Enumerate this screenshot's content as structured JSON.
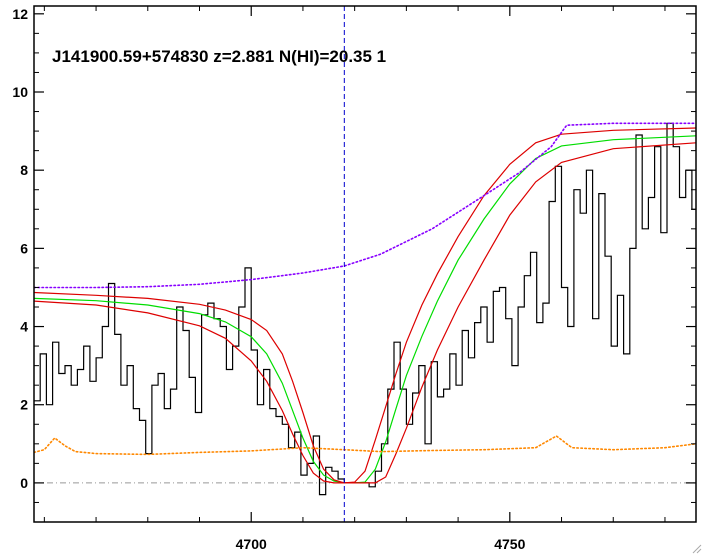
{
  "chart_data": {
    "type": "line",
    "title": "J141900.59+574830 z=2.881 N(HI)=20.35 1",
    "xlabel": "",
    "ylabel": "",
    "xlim": [
      4658,
      4786
    ],
    "ylim": [
      -1.0,
      12.2
    ],
    "x_ticks": [
      4700,
      4750
    ],
    "y_ticks": [
      0,
      2,
      4,
      6,
      8,
      10,
      12
    ],
    "grid": false,
    "line_center_x": 4718,
    "colors": {
      "flux": "#000000",
      "model": "#00dd00",
      "model_bounds": "#dd0000",
      "continuum": "#8800ff",
      "error": "#ff8800",
      "center_marker": "#0000cc",
      "zero_line": "#999999"
    },
    "series": [
      {
        "style": "step",
        "color": "#000000",
        "x": [
          4658.0,
          4659.2,
          4660.4,
          4661.6,
          4662.8,
          4664.0,
          4665.2,
          4666.4,
          4667.6,
          4668.8,
          4670.0,
          4671.2,
          4672.4,
          4673.6,
          4674.8,
          4676.0,
          4677.2,
          4678.4,
          4679.6,
          4680.8,
          4682.0,
          4683.2,
          4684.4,
          4685.6,
          4686.8,
          4688.0,
          4689.2,
          4690.4,
          4691.6,
          4692.8,
          4694.0,
          4695.2,
          4696.4,
          4697.6,
          4698.8,
          4700.0,
          4701.2,
          4702.4,
          4703.6,
          4704.8,
          4706.0,
          4707.2,
          4708.4,
          4709.6,
          4710.8,
          4712.0,
          4713.2,
          4714.4,
          4715.6,
          4716.8,
          4718.0,
          4719.2,
          4720.4,
          4721.6,
          4722.8,
          4724.0,
          4725.2,
          4726.4,
          4727.6,
          4728.8,
          4730.0,
          4731.2,
          4732.4,
          4733.6,
          4734.8,
          4736.0,
          4737.2,
          4738.4,
          4739.6,
          4740.8,
          4742.0,
          4743.2,
          4744.4,
          4745.6,
          4746.8,
          4748.0,
          4749.2,
          4750.4,
          4751.6,
          4752.8,
          4754.0,
          4755.2,
          4756.4,
          4757.6,
          4758.8,
          4760.0,
          4761.2,
          4762.4,
          4763.6,
          4764.8,
          4766.0,
          4767.2,
          4768.4,
          4769.6,
          4770.8,
          4772.0,
          4773.2,
          4774.4,
          4775.6,
          4776.8,
          4778.0,
          4779.2,
          4780.4,
          4781.6,
          4782.8,
          4784.0,
          4785.2
        ],
        "values": [
          2.1,
          3.3,
          2.0,
          3.6,
          2.8,
          3.0,
          2.5,
          2.9,
          3.5,
          2.6,
          3.2,
          4.0,
          5.1,
          3.8,
          2.5,
          3.0,
          1.9,
          1.6,
          0.75,
          2.5,
          2.8,
          1.9,
          2.4,
          4.5,
          3.9,
          2.7,
          1.8,
          4.3,
          4.6,
          4.2,
          4.0,
          2.9,
          3.5,
          4.5,
          5.5,
          3.4,
          2.0,
          2.9,
          1.9,
          1.7,
          1.5,
          0.9,
          1.3,
          0.2,
          0.5,
          1.2,
          -0.3,
          0.4,
          0.3,
          0.1,
          0.0,
          0.0,
          0.0,
          0.0,
          -0.1,
          0.3,
          1.0,
          2.4,
          3.6,
          2.4,
          1.5,
          2.3,
          3.0,
          1.0,
          3.1,
          2.2,
          2.4,
          3.3,
          2.5,
          3.9,
          3.2,
          4.1,
          4.5,
          3.6,
          4.9,
          5.0,
          4.2,
          3.0,
          4.5,
          5.3,
          5.9,
          4.1,
          4.6,
          7.2,
          8.1,
          5.0,
          4.0,
          7.5,
          6.9,
          8.0,
          4.2,
          7.4,
          5.8,
          3.5,
          4.8,
          3.3,
          6.0,
          8.9,
          6.5,
          7.3,
          8.6,
          6.4,
          9.2,
          8.6,
          7.3,
          8.0,
          7.0
        ]
      },
      {
        "style": "line",
        "color": "#00dd00",
        "x": [
          4658,
          4670,
          4680,
          4690,
          4695,
          4700,
          4703,
          4706,
          4708,
          4710,
          4712,
          4714,
          4716,
          4718,
          4720,
          4722,
          4724,
          4726,
          4728,
          4730,
          4733,
          4736,
          4740,
          4745,
          4750,
          4755,
          4760,
          4770,
          4786
        ],
        "values": [
          4.72,
          4.66,
          4.55,
          4.33,
          4.12,
          3.74,
          3.3,
          2.55,
          1.85,
          1.15,
          0.55,
          0.2,
          0.05,
          0.0,
          0.0,
          0.02,
          0.35,
          1.05,
          1.9,
          2.75,
          3.75,
          4.65,
          5.7,
          6.75,
          7.65,
          8.3,
          8.62,
          8.78,
          8.88
        ]
      },
      {
        "style": "line",
        "color": "#dd0000",
        "x": [
          4658,
          4670,
          4680,
          4690,
          4695,
          4700,
          4703,
          4706,
          4708,
          4710,
          4712,
          4714,
          4716,
          4718,
          4720,
          4722,
          4724,
          4726,
          4728,
          4730,
          4733,
          4736,
          4740,
          4745,
          4750,
          4755,
          4760,
          4770,
          4786
        ],
        "values": [
          4.87,
          4.8,
          4.72,
          4.57,
          4.42,
          4.18,
          3.9,
          3.3,
          2.6,
          1.8,
          0.95,
          0.35,
          0.08,
          0.0,
          0.02,
          0.3,
          1.1,
          1.95,
          2.8,
          3.6,
          4.55,
          5.35,
          6.3,
          7.35,
          8.15,
          8.7,
          8.92,
          9.02,
          9.08
        ]
      },
      {
        "style": "line",
        "color": "#dd0000",
        "x": [
          4658,
          4670,
          4680,
          4690,
          4695,
          4700,
          4703,
          4706,
          4708,
          4710,
          4712,
          4714,
          4716,
          4718,
          4720,
          4722,
          4724,
          4726,
          4728,
          4730,
          4733,
          4736,
          4740,
          4745,
          4750,
          4755,
          4760,
          4770,
          4786
        ],
        "values": [
          4.65,
          4.55,
          4.35,
          4.02,
          3.7,
          3.12,
          2.6,
          1.85,
          1.25,
          0.7,
          0.25,
          0.05,
          0.0,
          0.0,
          0.0,
          0.0,
          0.0,
          0.15,
          0.75,
          1.4,
          2.45,
          3.4,
          4.5,
          5.7,
          6.85,
          7.7,
          8.2,
          8.55,
          8.7
        ]
      },
      {
        "style": "dotted",
        "color": "#8800ff",
        "x": [
          4658,
          4670,
          4680,
          4690,
          4700,
          4710,
          4718,
          4725,
          4735,
          4745,
          4752,
          4758,
          4761,
          4770,
          4786
        ],
        "values": [
          5.0,
          5.0,
          5.02,
          5.08,
          5.2,
          5.37,
          5.55,
          5.85,
          6.5,
          7.35,
          7.95,
          8.6,
          9.15,
          9.2,
          9.2
        ]
      },
      {
        "style": "dotted",
        "color": "#ff8800",
        "x": [
          4658,
          4660,
          4662,
          4664,
          4666,
          4670,
          4680,
          4690,
          4700,
          4710,
          4718,
          4725,
          4735,
          4745,
          4755,
          4757,
          4759,
          4762,
          4770,
          4780,
          4786
        ],
        "values": [
          0.78,
          0.85,
          1.15,
          0.95,
          0.8,
          0.75,
          0.73,
          0.78,
          0.82,
          0.9,
          0.85,
          0.8,
          0.83,
          0.85,
          0.9,
          1.05,
          1.2,
          0.9,
          0.85,
          0.9,
          1.0
        ]
      }
    ]
  }
}
